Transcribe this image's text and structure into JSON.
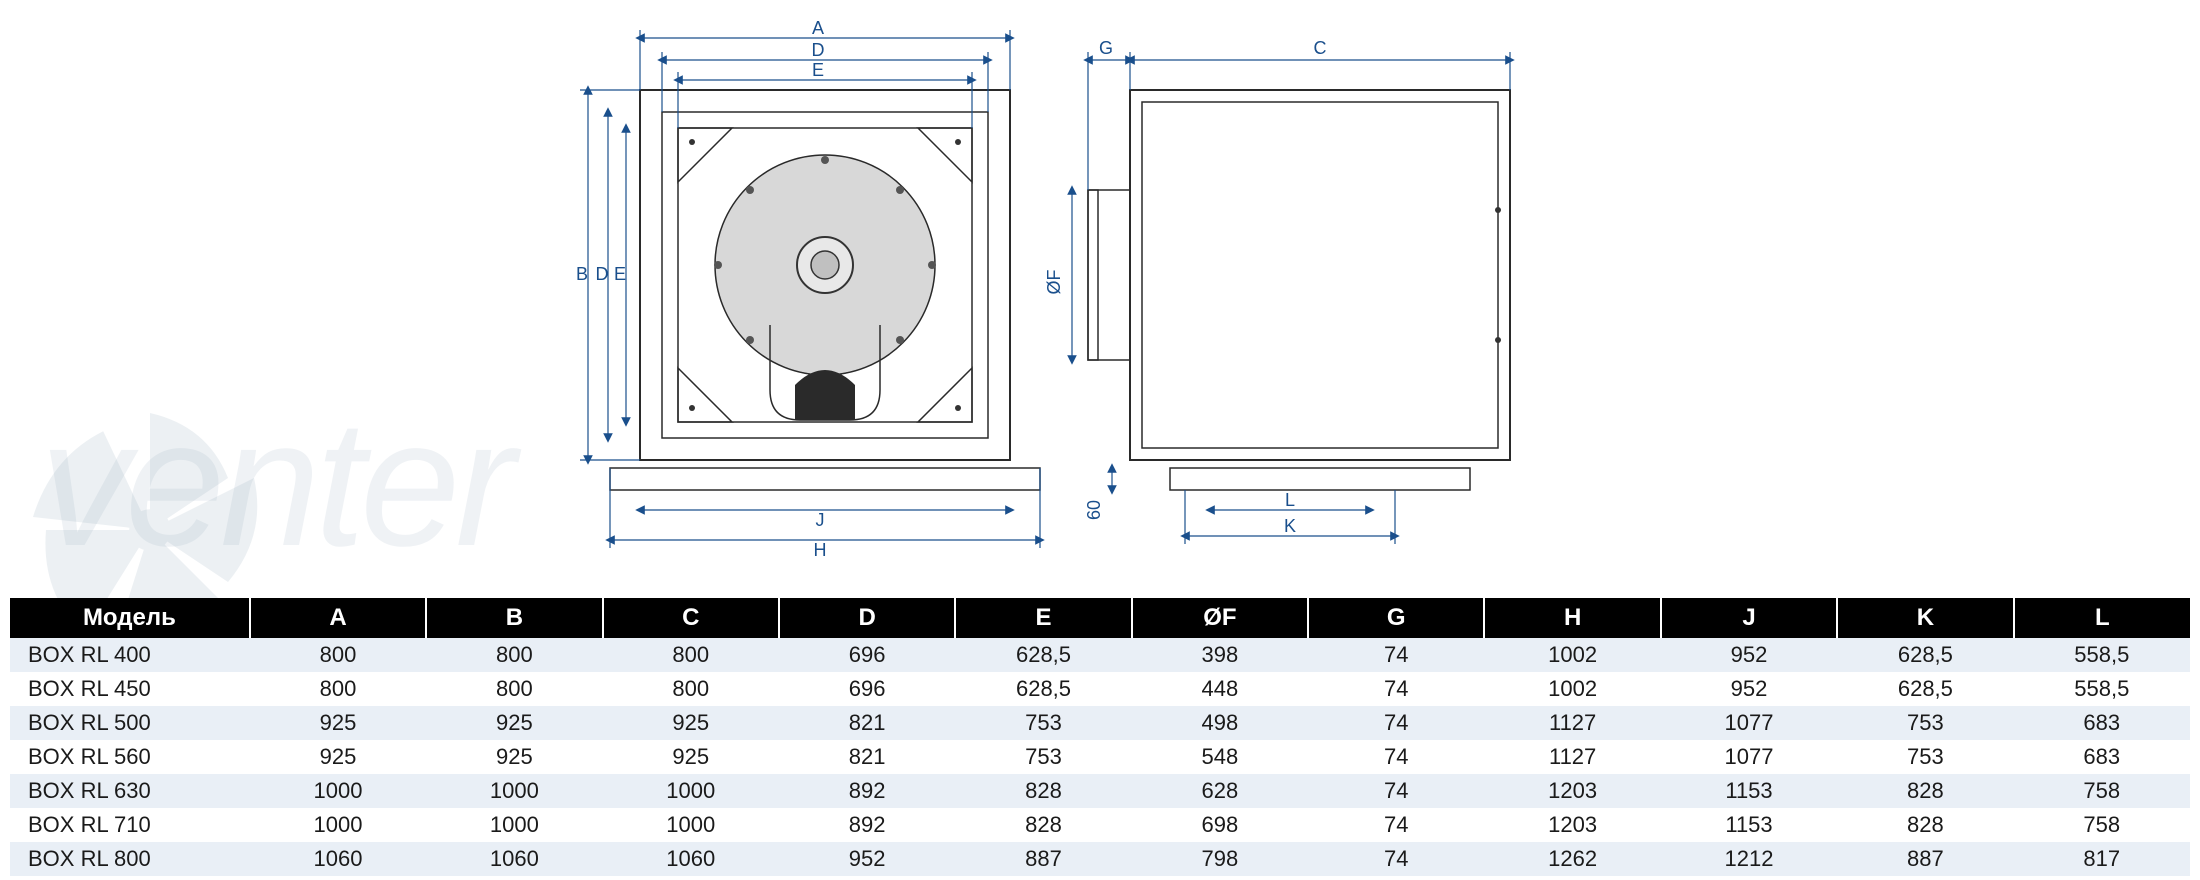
{
  "watermark_text": "venter",
  "diagram": {
    "labels": {
      "A": "A",
      "B": "B",
      "C": "C",
      "D": "D",
      "E": "E",
      "OF": "ØF",
      "G": "G",
      "H": "H",
      "J": "J",
      "K": "K",
      "L": "L",
      "sixty": "60"
    },
    "dim_line_color": "#1a4f8c",
    "outline_color": "#2a2a2a",
    "shade_fill": "#d8d8d8",
    "label_fontsize": 18
  },
  "table": {
    "header_bg": "#000000",
    "header_fg": "#ffffff",
    "row_odd_bg": "#e9eff6",
    "row_even_bg": "#ffffff",
    "header_fontsize": 24,
    "cell_fontsize": 22,
    "columns": [
      "Модель",
      "A",
      "B",
      "C",
      "D",
      "E",
      "ØF",
      "G",
      "H",
      "J",
      "K",
      "L"
    ],
    "rows": [
      [
        "BOX RL  400",
        "800",
        "800",
        "800",
        "696",
        "628,5",
        "398",
        "74",
        "1002",
        "952",
        "628,5",
        "558,5"
      ],
      [
        "BOX RL  450",
        "800",
        "800",
        "800",
        "696",
        "628,5",
        "448",
        "74",
        "1002",
        "952",
        "628,5",
        "558,5"
      ],
      [
        "BOX RL  500",
        "925",
        "925",
        "925",
        "821",
        "753",
        "498",
        "74",
        "1127",
        "1077",
        "753",
        "683"
      ],
      [
        "BOX RL  560",
        "925",
        "925",
        "925",
        "821",
        "753",
        "548",
        "74",
        "1127",
        "1077",
        "753",
        "683"
      ],
      [
        "BOX RL  630",
        "1000",
        "1000",
        "1000",
        "892",
        "828",
        "628",
        "74",
        "1203",
        "1153",
        "828",
        "758"
      ],
      [
        "BOX RL  710",
        "1000",
        "1000",
        "1000",
        "892",
        "828",
        "698",
        "74",
        "1203",
        "1153",
        "828",
        "758"
      ],
      [
        "BOX RL  800",
        "1060",
        "1060",
        "1060",
        "952",
        "887",
        "798",
        "74",
        "1262",
        "1212",
        "887",
        "817"
      ]
    ]
  }
}
